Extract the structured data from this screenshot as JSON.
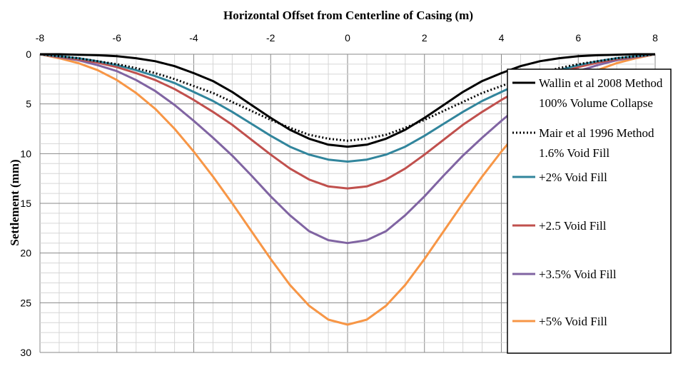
{
  "chart_data": {
    "type": "line",
    "title": "Horizontal Offset from Centerline of Casing (m)",
    "ylabel": "Settlement (mm)",
    "xlim": [
      -8,
      8
    ],
    "ylim": [
      0,
      30
    ],
    "y_inverted": true,
    "x_axis_position": "top",
    "xticks": [
      "-8",
      "-6",
      "-4",
      "-2",
      "0",
      "2",
      "4",
      "6",
      "8"
    ],
    "yticks": [
      "0",
      "5",
      "10",
      "15",
      "20",
      "25",
      "30"
    ],
    "grid": true,
    "legend_position": "right",
    "x": [
      -8,
      -7.5,
      -7,
      -6.5,
      -6,
      -5.5,
      -5,
      -4.5,
      -4,
      -3.5,
      -3,
      -2.5,
      -2,
      -1.5,
      -1,
      -0.5,
      0,
      0.5,
      1,
      1.5,
      2,
      2.5,
      3,
      3.5,
      4,
      4.5,
      5,
      5.5,
      6,
      6.5,
      7,
      7.5,
      8
    ],
    "series": [
      {
        "name": "Wallin et al 2008 Method",
        "name2": "100% Volume Collapse",
        "color": "#000000",
        "dash": "solid",
        "values": [
          0.0,
          0.0,
          0.05,
          0.1,
          0.2,
          0.4,
          0.7,
          1.2,
          1.9,
          2.7,
          3.8,
          5.1,
          6.4,
          7.6,
          8.5,
          9.1,
          9.3,
          9.1,
          8.5,
          7.6,
          6.4,
          5.1,
          3.8,
          2.7,
          1.9,
          1.2,
          0.7,
          0.4,
          0.2,
          0.1,
          0.05,
          0.0,
          0.0
        ]
      },
      {
        "name": "Mair et al 1996 Method",
        "name2": "1.6% Void Fill",
        "color": "#000000",
        "dash": "dotted",
        "values": [
          0.0,
          0.2,
          0.4,
          0.7,
          1.0,
          1.4,
          1.9,
          2.5,
          3.2,
          3.9,
          4.8,
          5.7,
          6.6,
          7.4,
          8.1,
          8.5,
          8.7,
          8.5,
          8.1,
          7.4,
          6.6,
          5.7,
          4.8,
          3.9,
          3.2,
          2.5,
          1.9,
          1.4,
          1.0,
          0.7,
          0.4,
          0.2,
          0.0
        ]
      },
      {
        "name": "+2% Void Fill",
        "color": "#31859c",
        "dash": "solid",
        "values": [
          0.0,
          0.2,
          0.4,
          0.7,
          1.1,
          1.6,
          2.2,
          2.9,
          3.8,
          4.7,
          5.8,
          7.0,
          8.2,
          9.3,
          10.1,
          10.6,
          10.8,
          10.6,
          10.1,
          9.3,
          8.2,
          7.0,
          5.8,
          4.7,
          3.8,
          2.9,
          2.2,
          1.6,
          1.1,
          0.7,
          0.4,
          0.2,
          0.0
        ]
      },
      {
        "name": "+2.5 Void Fill",
        "color": "#c0504d",
        "dash": "solid",
        "values": [
          0.0,
          0.25,
          0.5,
          0.85,
          1.3,
          1.9,
          2.6,
          3.5,
          4.6,
          5.8,
          7.1,
          8.6,
          10.1,
          11.5,
          12.6,
          13.3,
          13.5,
          13.3,
          12.6,
          11.5,
          10.1,
          8.6,
          7.1,
          5.8,
          4.6,
          3.5,
          2.6,
          1.9,
          1.3,
          0.85,
          0.5,
          0.25,
          0.0
        ]
      },
      {
        "name": "+3.5% Void Fill",
        "color": "#8064a2",
        "dash": "solid",
        "values": [
          0.0,
          0.3,
          0.6,
          1.1,
          1.7,
          2.6,
          3.7,
          5.1,
          6.7,
          8.4,
          10.2,
          12.2,
          14.3,
          16.2,
          17.8,
          18.7,
          19.0,
          18.7,
          17.8,
          16.2,
          14.3,
          12.2,
          10.2,
          8.4,
          6.7,
          5.1,
          3.7,
          2.6,
          1.7,
          1.1,
          0.6,
          0.3,
          0.0
        ]
      },
      {
        "name": "+5% Void Fill",
        "color": "#f79646",
        "dash": "solid",
        "values": [
          0.0,
          0.4,
          0.9,
          1.6,
          2.6,
          3.9,
          5.5,
          7.5,
          9.8,
          12.3,
          15.0,
          17.8,
          20.6,
          23.2,
          25.3,
          26.7,
          27.2,
          26.7,
          25.3,
          23.2,
          20.6,
          17.8,
          15.0,
          12.3,
          9.8,
          7.5,
          5.5,
          3.9,
          2.6,
          1.6,
          0.9,
          0.4,
          0.0
        ]
      }
    ]
  }
}
